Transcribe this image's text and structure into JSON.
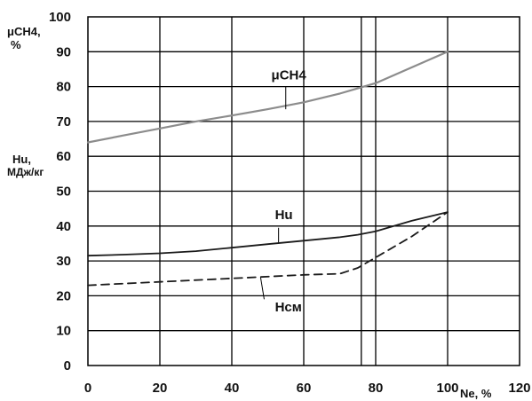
{
  "chart_data": {
    "type": "line",
    "title": "",
    "xlabel": "Ne, %",
    "ylabel_left_top": "μCH4,",
    "ylabel_left_top_unit": "%",
    "ylabel_left_mid": "Hu,",
    "ylabel_left_mid_unit": "МДж/кг",
    "xlim": [
      0,
      120
    ],
    "ylim": [
      0,
      100
    ],
    "x_ticks": [
      "0",
      "20",
      "40",
      "60",
      "80",
      "100",
      "120"
    ],
    "y_ticks": [
      "0",
      "10",
      "20",
      "30",
      "40",
      "50",
      "60",
      "70",
      "80",
      "90",
      "100"
    ],
    "grid": true,
    "series": [
      {
        "name": "μCH4",
        "color": "#8c8c8c",
        "style": "solid",
        "x": [
          0,
          10,
          20,
          30,
          40,
          50,
          60,
          70,
          75,
          80,
          90,
          100
        ],
        "y": [
          64,
          66,
          68,
          70,
          71.7,
          73.5,
          75.5,
          78,
          79.5,
          81,
          85.5,
          90
        ]
      },
      {
        "name": "Hu",
        "color": "#1a1a1a",
        "style": "solid",
        "x": [
          0,
          10,
          20,
          30,
          40,
          50,
          60,
          70,
          75,
          80,
          90,
          100
        ],
        "y": [
          31.5,
          31.8,
          32.2,
          32.8,
          33.8,
          34.8,
          35.8,
          36.8,
          37.5,
          38.5,
          41.5,
          44
        ]
      },
      {
        "name": "Hсм",
        "color": "#1a1a1a",
        "style": "dashed",
        "x": [
          0,
          20,
          40,
          60,
          70,
          75,
          80,
          90,
          100
        ],
        "y": [
          23,
          24,
          25,
          26,
          26.3,
          28,
          31,
          37,
          44
        ]
      }
    ],
    "annotations": [
      {
        "text": "μCH4",
        "x": 51,
        "y": 82
      },
      {
        "text": "Hu",
        "x": 52,
        "y": 42
      },
      {
        "text": "Hсм",
        "x": 52,
        "y": 15.5
      }
    ],
    "vertical_marker_x": 76
  }
}
